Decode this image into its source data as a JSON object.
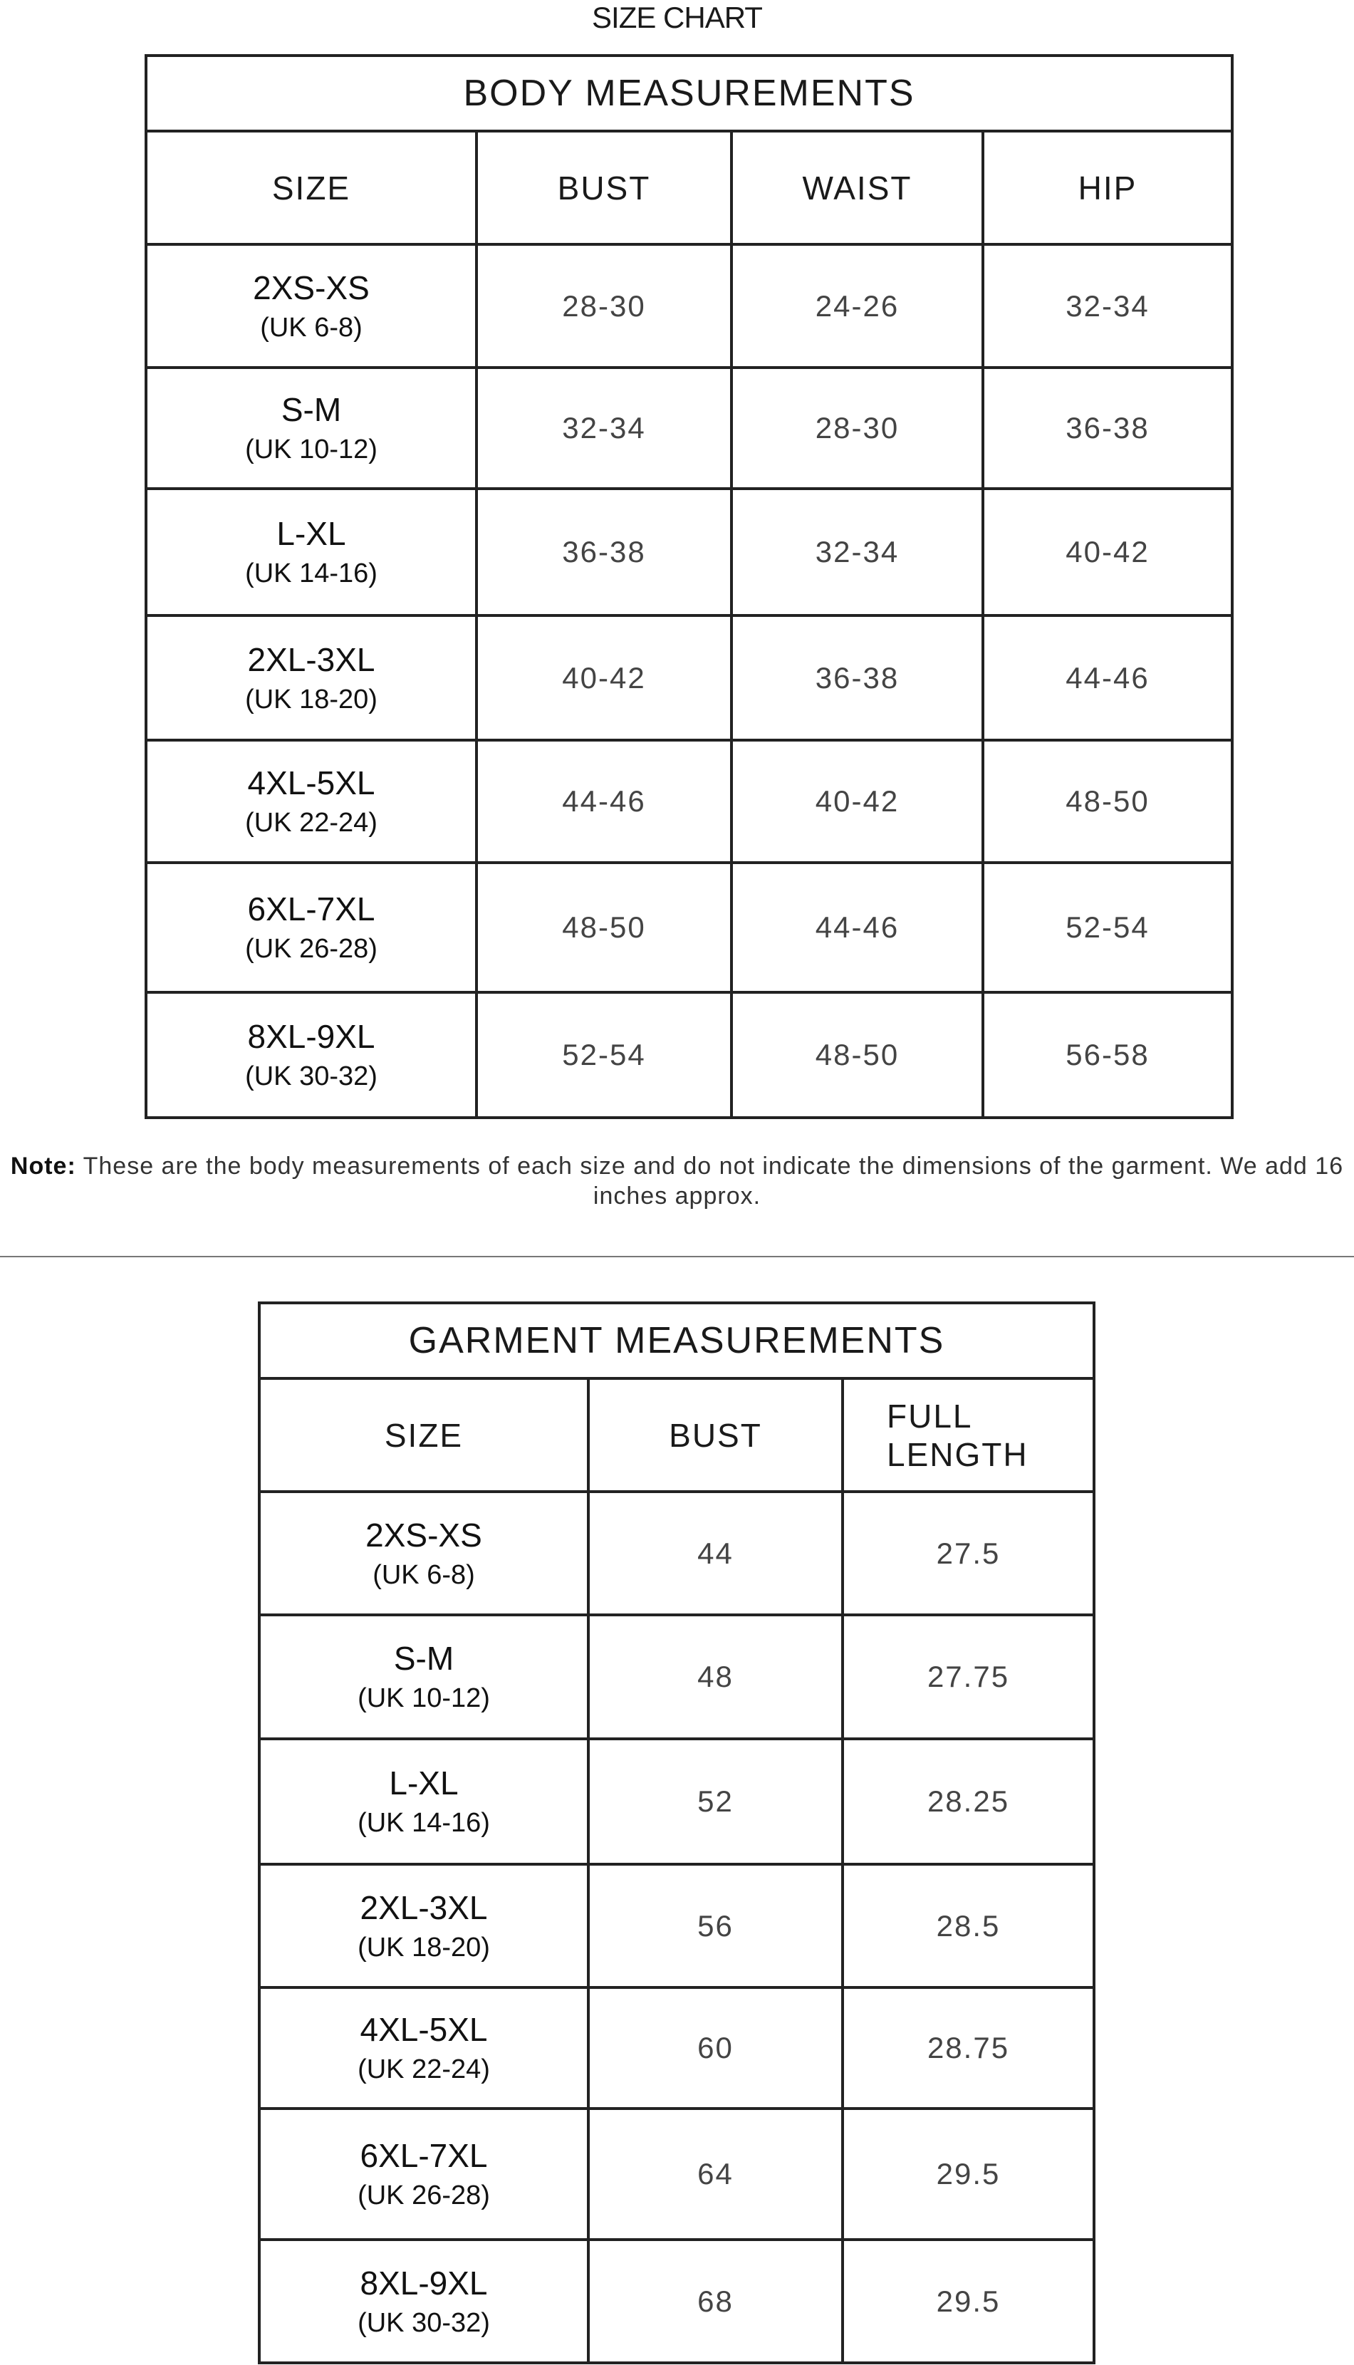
{
  "title": "SIZE CHART",
  "body_table": {
    "title": "BODY MEASUREMENTS",
    "columns": [
      "SIZE",
      "BUST",
      "WAIST",
      "HIP"
    ],
    "rows": [
      {
        "size": "2XS-XS",
        "uk": "(UK 6-8)",
        "values": [
          "28-30",
          "24-26",
          "32-34"
        ]
      },
      {
        "size": "S-M",
        "uk": "(UK 10-12)",
        "values": [
          "32-34",
          "28-30",
          "36-38"
        ]
      },
      {
        "size": "L-XL",
        "uk": "(UK 14-16)",
        "values": [
          "36-38",
          "32-34",
          "40-42"
        ]
      },
      {
        "size": "2XL-3XL",
        "uk": "(UK 18-20)",
        "values": [
          "40-42",
          "36-38",
          "44-46"
        ]
      },
      {
        "size": "4XL-5XL",
        "uk": "(UK 22-24)",
        "values": [
          "44-46",
          "40-42",
          "48-50"
        ]
      },
      {
        "size": "6XL-7XL",
        "uk": "(UK 26-28)",
        "values": [
          "48-50",
          "44-46",
          "52-54"
        ]
      },
      {
        "size": "8XL-9XL",
        "uk": "(UK 30-32)",
        "values": [
          "52-54",
          "48-50",
          "56-58"
        ]
      }
    ]
  },
  "note": {
    "label": "Note:",
    "text": " These are the body measurements of each size and do not indicate the dimensions of the garment. We add 16 inches approx."
  },
  "garment_table": {
    "title": "GARMENT MEASUREMENTS",
    "columns": [
      "SIZE",
      "BUST",
      "FULL LENGTH"
    ],
    "rows": [
      {
        "size": "2XS-XS",
        "uk": "(UK 6-8)",
        "values": [
          "44",
          "27.5"
        ]
      },
      {
        "size": "S-M",
        "uk": "(UK 10-12)",
        "values": [
          "48",
          "27.75"
        ]
      },
      {
        "size": "L-XL",
        "uk": "(UK 14-16)",
        "values": [
          "52",
          "28.25"
        ]
      },
      {
        "size": "2XL-3XL",
        "uk": "(UK 18-20)",
        "values": [
          "56",
          "28.5"
        ]
      },
      {
        "size": "4XL-5XL",
        "uk": "(UK 22-24)",
        "values": [
          "60",
          "28.75"
        ]
      },
      {
        "size": "6XL-7XL",
        "uk": "(UK 26-28)",
        "values": [
          "64",
          "29.5"
        ]
      },
      {
        "size": "8XL-9XL",
        "uk": "(UK 30-32)",
        "values": [
          "68",
          "29.5"
        ]
      }
    ]
  }
}
